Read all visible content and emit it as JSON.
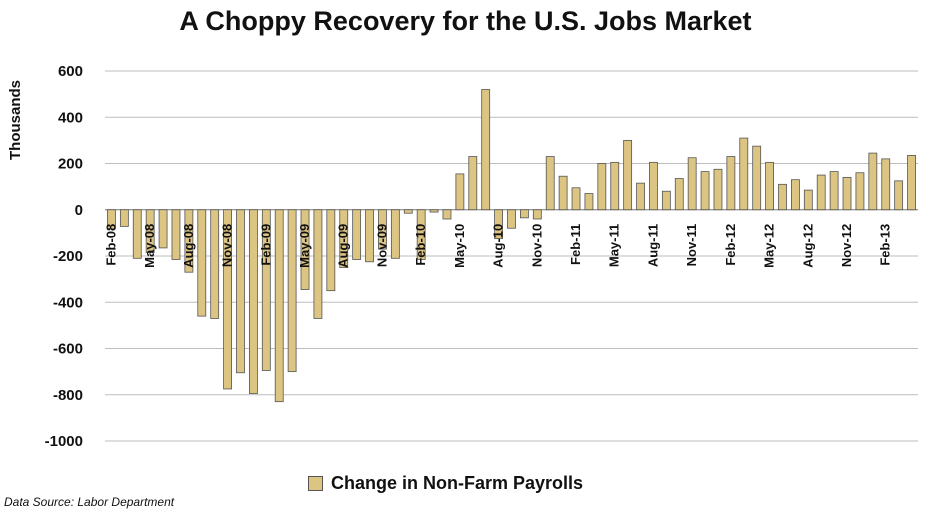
{
  "chart_data": {
    "type": "bar",
    "title": "A Choppy Recovery for the U.S. Jobs Market",
    "ylabel": "Thousands",
    "xlabel": "",
    "ylim": [
      -1000,
      600
    ],
    "yticks": [
      600,
      400,
      200,
      0,
      -200,
      -400,
      -600,
      -800,
      -1000
    ],
    "grid": true,
    "legend_position": "bottom",
    "bar_color": "#dcc482",
    "bar_edge_color": "#555555",
    "series": [
      {
        "name": "Change in Non-Farm Payrolls",
        "values": [
          -83,
          -72,
          -210,
          -185,
          -165,
          -215,
          -270,
          -460,
          -470,
          -775,
          -705,
          -795,
          -695,
          -830,
          -700,
          -345,
          -470,
          -350,
          -250,
          -215,
          -225,
          -170,
          -210,
          -15,
          -215,
          -10,
          -40,
          155,
          230,
          520,
          -125,
          -80,
          -35,
          -40,
          230,
          145,
          95,
          70,
          200,
          205,
          300,
          115,
          205,
          80,
          135,
          225,
          165,
          175,
          230,
          310,
          275,
          205,
          110,
          130,
          85,
          150,
          165,
          140,
          160,
          245,
          220,
          125,
          235
        ]
      }
    ],
    "x_tick_labels": [
      "Feb-08",
      "May-08",
      "Aug-08",
      "Nov-08",
      "Feb-09",
      "May-09",
      "Aug-09",
      "Nov-09",
      "Feb-10",
      "May-10",
      "Aug-10",
      "Nov-10",
      "Feb-11",
      "May-11",
      "Aug-11",
      "Nov-11",
      "Feb-12",
      "May-12",
      "Aug-12",
      "Nov-12",
      "Feb-13"
    ]
  },
  "source": "Data Source: Labor Department"
}
